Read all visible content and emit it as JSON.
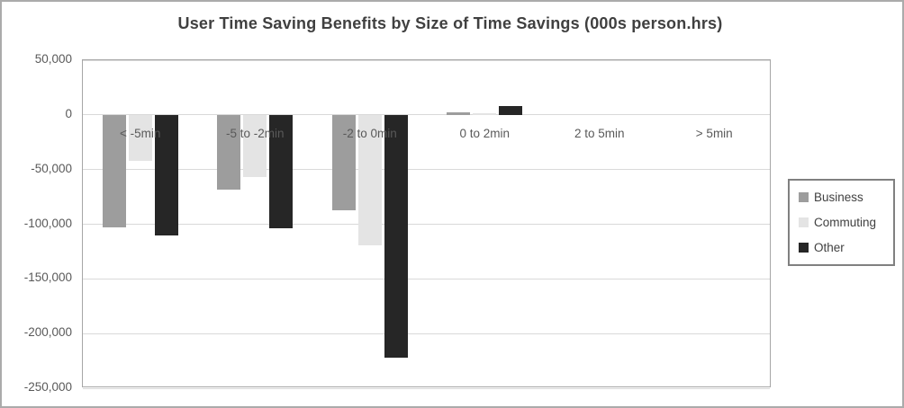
{
  "chart_data": {
    "type": "bar",
    "title": "User Time Saving Benefits by Size of Time Savings (000s person.hrs)",
    "categories": [
      "< -5min",
      "-5 to -2min",
      "-2 to 0min",
      "0 to 2min",
      "2 to 5min",
      "> 5min"
    ],
    "series": [
      {
        "name": "Business",
        "color": "#9d9d9d",
        "values": [
          -103000,
          -68000,
          -87000,
          2000,
          0,
          0
        ]
      },
      {
        "name": "Commuting",
        "color": "#e4e4e4",
        "values": [
          -42000,
          -57000,
          -119000,
          1500,
          0,
          0
        ]
      },
      {
        "name": "Other",
        "color": "#262626",
        "values": [
          -110000,
          -104000,
          -222000,
          8000,
          0,
          0
        ]
      }
    ],
    "yticks": [
      {
        "label": "50,000",
        "value": 50000
      },
      {
        "label": "0",
        "value": 0
      },
      {
        "label": "-50,000",
        "value": -50000
      },
      {
        "label": "-100,000",
        "value": -100000
      },
      {
        "label": "-150,000",
        "value": -150000
      },
      {
        "label": "-200,000",
        "value": -200000
      },
      {
        "label": "-250,000",
        "value": -250000
      }
    ],
    "ylim": [
      -250000,
      50000
    ],
    "xlabel": "",
    "ylabel": "",
    "grid": true,
    "legend_position": "right",
    "colors": {
      "title_text": "#404040",
      "axis_text": "#595959",
      "gridline": "#d9d9d9",
      "plot_border": "#a6a6a6",
      "legend_border": "#808080",
      "outer_frame": "#ababab"
    }
  }
}
